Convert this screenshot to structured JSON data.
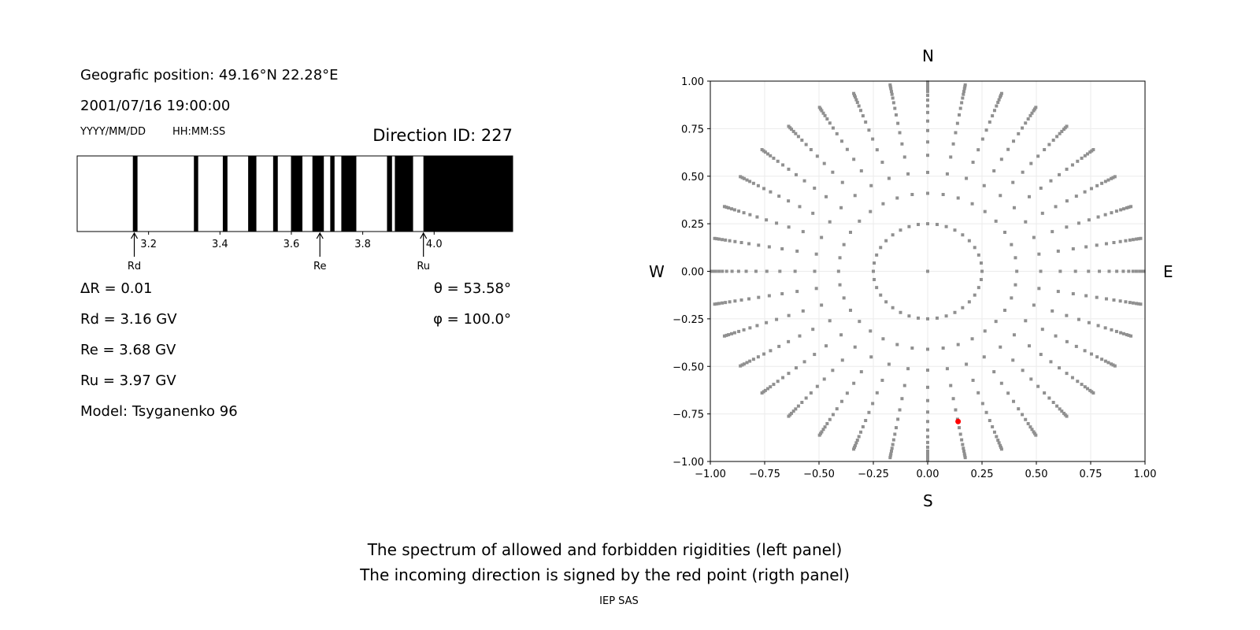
{
  "left_panel": {
    "position": "Geografic position: 49.16°N 22.28°E",
    "datetime": "2001/07/16 19:00:00",
    "date_format": "YYYY/MM/DD",
    "time_format": "HH:MM:SS",
    "direction_id": "Direction ID: 227",
    "delta_r": "ΔR = 0.01",
    "rd": "Rd = 3.16 GV",
    "re": "Re = 3.68 GV",
    "ru": "Ru = 3.97 GV",
    "model": "Model: Tsyganenko 96",
    "theta": "θ = 53.58°",
    "phi": "φ = 100.0°"
  },
  "captions": {
    "line1": "The spectrum of allowed and forbidden rigidities (left panel)",
    "line2": "The incoming direction is signed by the red point (rigth panel)",
    "credit": "IEP SAS"
  },
  "chart_data": [
    {
      "type": "bar",
      "subtype": "rigidity-spectrum",
      "xlim": [
        3.0,
        4.22
      ],
      "xticks": [
        "3.2",
        "3.4",
        "3.6",
        "3.8",
        "4.0"
      ],
      "xtick_values": [
        3.2,
        3.4,
        3.6,
        3.8,
        4.0
      ],
      "forbidden_bands_GV": [
        [
          3.156,
          3.169
        ],
        [
          3.327,
          3.339
        ],
        [
          3.408,
          3.421
        ],
        [
          3.479,
          3.502
        ],
        [
          3.549,
          3.562
        ],
        [
          3.599,
          3.631
        ],
        [
          3.659,
          3.691
        ],
        [
          3.709,
          3.721
        ],
        [
          3.74,
          3.782
        ],
        [
          3.868,
          3.882
        ],
        [
          3.89,
          3.941
        ],
        [
          3.97,
          4.22
        ]
      ],
      "markers": [
        {
          "label": "Rd",
          "value": 3.16
        },
        {
          "label": "Re",
          "value": 3.68
        },
        {
          "label": "Ru",
          "value": 3.97
        }
      ],
      "colors": {
        "forbidden": "#000000",
        "allowed": "#ffffff"
      }
    },
    {
      "type": "scatter",
      "xlim": [
        -1.0,
        1.0
      ],
      "ylim": [
        -1.0,
        1.0
      ],
      "xticks": [
        "−1.00",
        "−0.75",
        "−0.50",
        "−0.25",
        "0.00",
        "0.25",
        "0.50",
        "0.75",
        "1.00"
      ],
      "yticks": [
        "−1.00",
        "−0.75",
        "−0.50",
        "−0.25",
        "0.00",
        "0.25",
        "0.50",
        "0.75",
        "1.00"
      ],
      "tick_values": [
        -1,
        -0.75,
        -0.5,
        -0.25,
        0,
        0.25,
        0.5,
        0.75,
        1
      ],
      "grid": true,
      "compass": {
        "north": "N",
        "south": "S",
        "west": "W",
        "east": "E"
      },
      "directions": {
        "center": [
          0,
          0
        ],
        "inner_ring": {
          "r": 0.25,
          "count": 36
        },
        "spokes": {
          "count": 36,
          "radii": [
            0.41,
            0.52,
            0.61,
            0.68,
            0.74,
            0.79,
            0.835,
            0.87,
            0.9,
            0.925,
            0.945,
            0.96,
            0.975,
            0.985,
            0.995
          ]
        }
      },
      "selected_point": [
        0.14,
        -0.79
      ],
      "colors": {
        "points": "#909090",
        "selected": "#ff0000",
        "grid": "#ebebeb"
      }
    }
  ]
}
